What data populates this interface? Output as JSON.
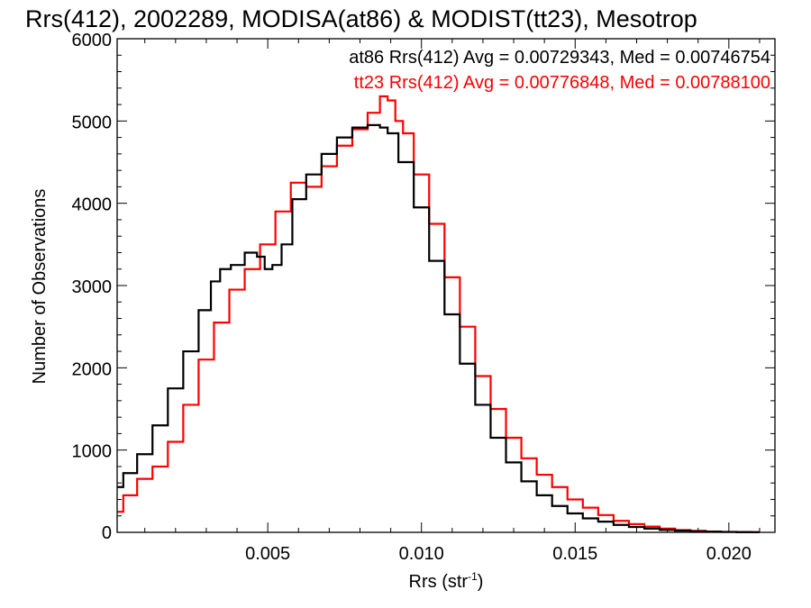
{
  "chart_data": {
    "type": "line",
    "title": "Rrs(412), 2002289, MODISA(at86) & MODIST(tt23), Mesotrop",
    "xlabel_main": "Rrs (str",
    "xlabel_sup": "-1",
    "xlabel_close": ")",
    "ylabel": "Number of Observations",
    "xlim": [
      0.0001,
      0.0215
    ],
    "ylim": [
      0,
      6000
    ],
    "xticks": [
      0.005,
      0.01,
      0.015,
      0.02
    ],
    "xtick_labels": [
      "0.005",
      "0.010",
      "0.015",
      "0.020"
    ],
    "yticks": [
      0,
      1000,
      2000,
      3000,
      4000,
      5000,
      6000
    ],
    "ytick_labels": [
      "0",
      "1000",
      "2000",
      "3000",
      "4000",
      "5000",
      "6000"
    ],
    "grid": false,
    "legend_placement": "top-right",
    "legend_text": [
      "at86 Rrs(412) Avg = 0.00729343, Med = 0.00746754",
      "tt23 Rrs(412) Avg = 0.00776848, Med = 0.00788100"
    ],
    "series": [
      {
        "color": "#000000",
        "x": [
          0.0001,
          0.0005,
          0.001,
          0.0015,
          0.002,
          0.0025,
          0.003,
          0.0033,
          0.0036,
          0.004,
          0.0045,
          0.0048,
          0.005,
          0.0053,
          0.0056,
          0.006,
          0.0065,
          0.007,
          0.0075,
          0.008,
          0.0085,
          0.0088,
          0.009,
          0.0095,
          0.01,
          0.0105,
          0.011,
          0.0115,
          0.012,
          0.0125,
          0.013,
          0.0135,
          0.014,
          0.0145,
          0.015,
          0.0155,
          0.016,
          0.0165,
          0.017,
          0.0175,
          0.018,
          0.0185,
          0.019,
          0.0195,
          0.02,
          0.0205,
          0.021
        ],
        "values": [
          550,
          720,
          950,
          1300,
          1750,
          2200,
          2700,
          3050,
          3200,
          3250,
          3400,
          3350,
          3200,
          3250,
          3500,
          4050,
          4350,
          4600,
          4800,
          4920,
          4950,
          4920,
          4850,
          4500,
          3950,
          3300,
          2650,
          2050,
          1550,
          1150,
          850,
          620,
          450,
          320,
          230,
          170,
          130,
          90,
          65,
          45,
          30,
          20,
          12,
          8,
          5,
          3,
          2
        ]
      },
      {
        "color": "#ff0000",
        "x": [
          0.0001,
          0.0005,
          0.001,
          0.0015,
          0.002,
          0.0025,
          0.003,
          0.0035,
          0.004,
          0.0045,
          0.005,
          0.0055,
          0.006,
          0.0065,
          0.007,
          0.0075,
          0.008,
          0.0085,
          0.0088,
          0.009,
          0.0093,
          0.0095,
          0.01,
          0.0105,
          0.011,
          0.0115,
          0.012,
          0.0125,
          0.013,
          0.0135,
          0.014,
          0.0145,
          0.015,
          0.0155,
          0.016,
          0.0165,
          0.017,
          0.0175,
          0.018,
          0.0185,
          0.019,
          0.0195,
          0.02,
          0.0205,
          0.021
        ],
        "values": [
          250,
          450,
          650,
          800,
          1100,
          1550,
          2100,
          2550,
          2950,
          3200,
          3500,
          3900,
          4250,
          4200,
          4450,
          4700,
          4900,
          5100,
          5300,
          5250,
          5000,
          4850,
          4350,
          3750,
          3100,
          2500,
          1900,
          1500,
          1150,
          900,
          700,
          550,
          400,
          300,
          210,
          140,
          100,
          70,
          45,
          28,
          18,
          10,
          6,
          4,
          2
        ]
      }
    ]
  }
}
